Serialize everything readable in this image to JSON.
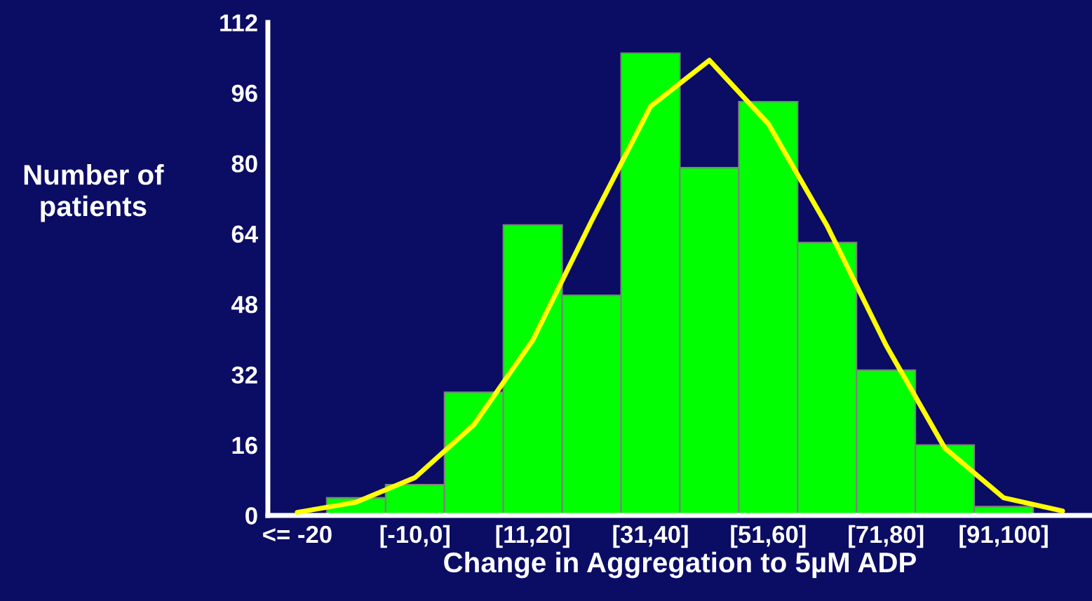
{
  "chart_data": {
    "type": "bar",
    "xlabel": "Change in Aggregation to 5µM ADP",
    "ylabel": "Number of\npatients",
    "categories": [
      "<= -20",
      null,
      "[-10,0]",
      null,
      "[11,20]",
      null,
      "[31,40]",
      null,
      "[51,60]",
      null,
      "[71,80]",
      null,
      "[91,100]",
      null
    ],
    "series": [
      {
        "color": "#00ff00",
        "values": [
          null,
          4,
          7,
          28,
          66,
          50,
          105,
          79,
          94,
          62,
          33,
          16,
          2,
          null
        ]
      },
      {
        "type": "line",
        "color": "#ffff00",
        "values": [
          0.7,
          3.0,
          8.6,
          20.6,
          39.8,
          66.9,
          92.9,
          103.4,
          89,
          65.8,
          38.7,
          15.3,
          4.0,
          1.0
        ]
      }
    ],
    "ylim": [
      0,
      112
    ],
    "yticks": [
      0,
      16,
      32,
      48,
      64,
      80,
      96,
      112
    ],
    "grid": false,
    "legend": false,
    "marker": "none",
    "line_style": "solid"
  }
}
